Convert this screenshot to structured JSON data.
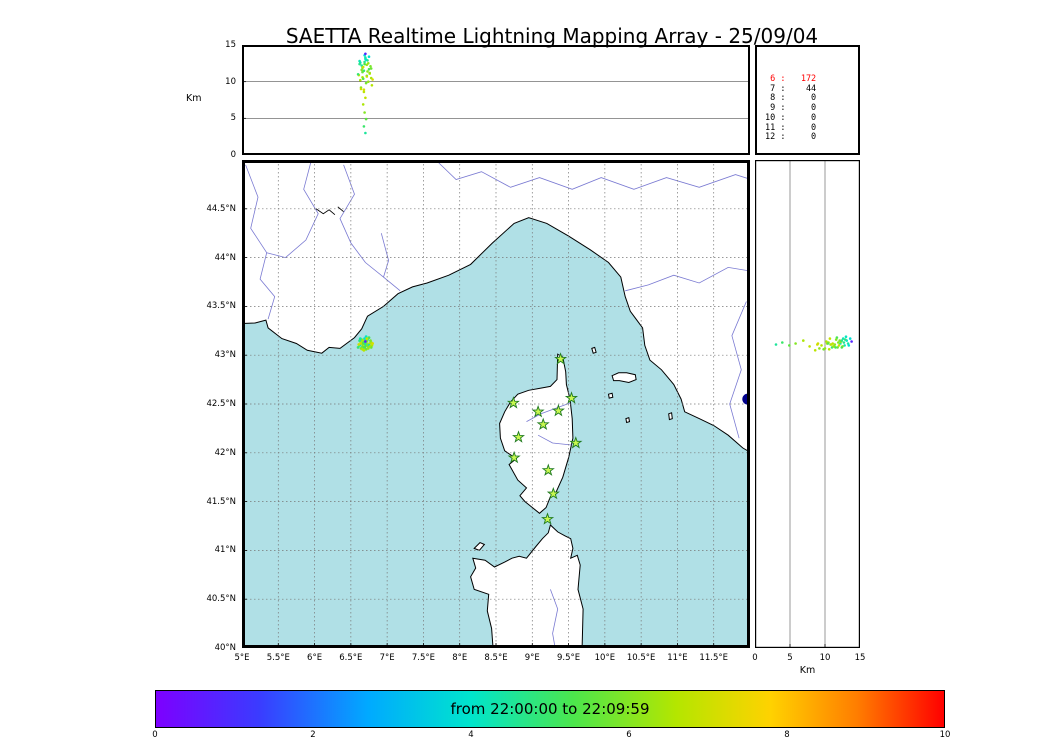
{
  "chart_data": {
    "type": "scatter",
    "title": "SAETTA Realtime Lightning Mapping Array - 25/09/04",
    "description": "Realtime lightning mapping array display: VHF sources as [longitude_deg, latitude_deg, altitude_km, time_min] colored by time within the window",
    "colorbar": {
      "label": "from 22:00:00 to 22:09:59",
      "range": [
        0,
        10
      ],
      "ticks": [
        "0",
        "2",
        "4",
        "6",
        "8",
        "10"
      ],
      "tick_values": [
        0,
        2,
        4,
        6,
        8,
        10
      ],
      "stops": [
        [
          0,
          "#7d00ff"
        ],
        [
          0.13,
          "#3b3bff"
        ],
        [
          0.27,
          "#00aaff"
        ],
        [
          0.4,
          "#00e5cc"
        ],
        [
          0.53,
          "#4ce64c"
        ],
        [
          0.66,
          "#b4e600"
        ],
        [
          0.78,
          "#ffd200"
        ],
        [
          0.89,
          "#ff7d00"
        ],
        [
          1,
          "#ff0000"
        ]
      ]
    },
    "panels": {
      "alt_vs_lon": {
        "axis_label": "Km",
        "ylim": [
          0,
          15
        ],
        "xlim": [
          5,
          12
        ],
        "tick_labels": [
          "0",
          "5",
          "10",
          "15"
        ],
        "tick_values": [
          0,
          5,
          10,
          15
        ],
        "gridlines": [
          5,
          10
        ]
      },
      "map": {
        "xlim": [
          5,
          12
        ],
        "ylim": [
          40,
          45
        ],
        "grid_step": 0.5,
        "xtick_labels": [
          "5°E",
          "5.5°E",
          "6°E",
          "6.5°E",
          "7°E",
          "7.5°E",
          "8°E",
          "8.5°E",
          "9°E",
          "9.5°E",
          "10°E",
          "10.5°E",
          "11°E",
          "11.5°E"
        ],
        "xtick_values": [
          5,
          5.5,
          6,
          6.5,
          7,
          7.5,
          8,
          8.5,
          9,
          9.5,
          10,
          10.5,
          11,
          11.5
        ],
        "ytick_labels": [
          "40°N",
          "40.5°N",
          "41°N",
          "41.5°N",
          "42°N",
          "42.5°N",
          "43°N",
          "43.5°N",
          "44°N",
          "44.5°N"
        ],
        "ytick_values": [
          40,
          40.5,
          41,
          41.5,
          42,
          42.5,
          43,
          43.5,
          44,
          44.5
        ]
      },
      "alt_vs_lat": {
        "axis_label": "Km",
        "xlim": [
          0,
          15
        ],
        "ylim": [
          40,
          45
        ],
        "tick_labels": [
          "0",
          "5",
          "10",
          "15"
        ],
        "tick_values": [
          0,
          5,
          10,
          15
        ],
        "gridlines": [
          5,
          10
        ]
      },
      "counts": {
        "rows": [
          [
            "6",
            "172"
          ],
          [
            "7",
            "44"
          ],
          [
            "8",
            "0"
          ],
          [
            "9",
            "0"
          ],
          [
            "10",
            "0"
          ],
          [
            "11",
            "0"
          ],
          [
            "12",
            "0"
          ]
        ],
        "highlight_index": 0,
        "highlight_color": "#ff0000"
      }
    },
    "sources": [
      [
        6.62,
        43.1,
        12.8,
        4.2
      ],
      [
        6.65,
        43.12,
        12.2,
        4.5
      ],
      [
        6.68,
        43.08,
        11.5,
        5.0
      ],
      [
        6.7,
        43.15,
        13.1,
        4.0
      ],
      [
        6.72,
        43.11,
        10.8,
        5.5
      ],
      [
        6.66,
        43.13,
        11.9,
        6.0
      ],
      [
        6.74,
        43.09,
        12.5,
        6.2
      ],
      [
        6.69,
        43.17,
        13.6,
        3.8
      ],
      [
        6.71,
        43.06,
        9.8,
        5.8
      ],
      [
        6.63,
        43.14,
        10.2,
        6.5
      ],
      [
        6.76,
        43.12,
        11.1,
        6.8
      ],
      [
        6.67,
        43.1,
        12.0,
        7.0
      ],
      [
        6.73,
        43.16,
        12.9,
        4.8
      ],
      [
        6.64,
        43.07,
        9.2,
        6.1
      ],
      [
        6.78,
        43.13,
        10.5,
        6.4
      ],
      [
        6.7,
        43.12,
        13.3,
        4.4
      ],
      [
        6.68,
        43.05,
        8.6,
        6.7
      ],
      [
        6.75,
        43.18,
        11.7,
        5.2
      ],
      [
        6.61,
        43.11,
        10.9,
        6.9
      ],
      [
        6.72,
        43.14,
        12.3,
        6.3
      ],
      [
        6.66,
        43.09,
        11.3,
        5.6
      ],
      [
        6.79,
        43.1,
        9.5,
        6.6
      ],
      [
        6.69,
        43.13,
        12.7,
        4.6
      ],
      [
        6.71,
        43.19,
        13.0,
        4.1
      ],
      [
        6.65,
        43.16,
        11.6,
        6.0
      ],
      [
        6.74,
        43.07,
        10.0,
        6.2
      ],
      [
        6.68,
        43.11,
        8.9,
        7.1
      ],
      [
        6.7,
        43.09,
        7.8,
        6.8
      ],
      [
        6.67,
        43.15,
        6.9,
        6.5
      ],
      [
        6.69,
        43.12,
        5.8,
        6.0
      ],
      [
        6.71,
        43.1,
        4.9,
        5.5
      ],
      [
        6.68,
        43.13,
        3.9,
        5.0
      ],
      [
        6.7,
        43.11,
        3.0,
        4.5
      ],
      [
        6.8,
        43.12,
        10.3,
        7.2
      ],
      [
        6.6,
        43.08,
        11.0,
        4.9
      ],
      [
        6.77,
        43.15,
        12.1,
        5.9
      ],
      [
        6.63,
        43.17,
        12.6,
        4.3
      ],
      [
        6.73,
        43.11,
        11.4,
        6.1
      ],
      [
        6.66,
        43.06,
        10.6,
        6.6
      ],
      [
        6.75,
        43.1,
        13.4,
        3.9
      ],
      [
        6.69,
        43.08,
        12.4,
        5.3
      ],
      [
        6.72,
        43.17,
        10.7,
        6.9
      ],
      [
        6.64,
        43.12,
        9.0,
        7.0
      ],
      [
        6.78,
        43.08,
        11.8,
        5.7
      ],
      [
        6.7,
        43.14,
        13.8,
        0.8
      ],
      [
        6.62,
        43.15,
        12.4,
        4.7
      ],
      [
        6.76,
        43.09,
        11.2,
        6.3
      ],
      [
        6.67,
        43.12,
        10.4,
        5.4
      ]
    ],
    "stations": [
      [
        9.39,
        42.96
      ],
      [
        8.74,
        42.51
      ],
      [
        9.08,
        42.42
      ],
      [
        9.36,
        42.43
      ],
      [
        9.54,
        42.56
      ],
      [
        9.15,
        42.29
      ],
      [
        8.81,
        42.16
      ],
      [
        8.75,
        41.95
      ],
      [
        9.6,
        42.1
      ],
      [
        9.22,
        41.82
      ],
      [
        9.29,
        41.58
      ],
      [
        9.21,
        41.32
      ]
    ],
    "edge_marker": {
      "lon": 11.97,
      "lat": 42.55,
      "radius_px": 5.5,
      "color": "#00008b"
    }
  },
  "basemap": {
    "sea_color": "#b0e0e6",
    "land_color": "#ffffff",
    "coast_color": "#000000",
    "river_color": "#7a7ad2",
    "grid_color": "#777777",
    "station_fill": "#c8f750",
    "station_stroke": "#1f7a1f",
    "land_polygons": {
      "mainland": [
        [
          4.8,
          45.3
        ],
        [
          4.8,
          43.32
        ],
        [
          5.18,
          43.33
        ],
        [
          5.33,
          43.36
        ],
        [
          5.36,
          43.28
        ],
        [
          5.55,
          43.17
        ],
        [
          5.75,
          43.12
        ],
        [
          5.9,
          43.05
        ],
        [
          6.1,
          43.02
        ],
        [
          6.2,
          43.08
        ],
        [
          6.35,
          43.07
        ],
        [
          6.55,
          43.18
        ],
        [
          6.65,
          43.27
        ],
        [
          6.73,
          43.4
        ],
        [
          6.95,
          43.5
        ],
        [
          7.15,
          43.63
        ],
        [
          7.35,
          43.7
        ],
        [
          7.55,
          43.74
        ],
        [
          7.85,
          43.82
        ],
        [
          8.15,
          43.93
        ],
        [
          8.45,
          44.15
        ],
        [
          8.75,
          44.35
        ],
        [
          8.95,
          44.41
        ],
        [
          9.2,
          44.35
        ],
        [
          9.5,
          44.22
        ],
        [
          9.8,
          44.08
        ],
        [
          10.05,
          43.95
        ],
        [
          10.22,
          43.8
        ],
        [
          10.28,
          43.6
        ],
        [
          10.35,
          43.45
        ],
        [
          10.52,
          43.28
        ],
        [
          10.55,
          43.1
        ],
        [
          10.62,
          42.95
        ],
        [
          10.78,
          42.85
        ],
        [
          10.95,
          42.7
        ],
        [
          11.05,
          42.55
        ],
        [
          11.1,
          42.42
        ],
        [
          11.3,
          42.35
        ],
        [
          11.5,
          42.28
        ],
        [
          11.7,
          42.18
        ],
        [
          11.9,
          42.05
        ],
        [
          12.2,
          41.92
        ],
        [
          12.2,
          45.3
        ]
      ],
      "corsica": [
        [
          9.35,
          43.01
        ],
        [
          9.42,
          42.98
        ],
        [
          9.46,
          42.83
        ],
        [
          9.47,
          42.7
        ],
        [
          9.52,
          42.55
        ],
        [
          9.55,
          42.35
        ],
        [
          9.56,
          42.15
        ],
        [
          9.5,
          41.95
        ],
        [
          9.42,
          41.75
        ],
        [
          9.33,
          41.6
        ],
        [
          9.25,
          41.55
        ],
        [
          9.19,
          41.44
        ],
        [
          9.1,
          41.38
        ],
        [
          9.0,
          41.44
        ],
        [
          8.9,
          41.5
        ],
        [
          8.83,
          41.56
        ],
        [
          8.92,
          41.64
        ],
        [
          8.8,
          41.72
        ],
        [
          8.68,
          41.88
        ],
        [
          8.78,
          41.94
        ],
        [
          8.62,
          42.02
        ],
        [
          8.56,
          42.15
        ],
        [
          8.55,
          42.3
        ],
        [
          8.62,
          42.42
        ],
        [
          8.7,
          42.52
        ],
        [
          8.8,
          42.6
        ],
        [
          8.95,
          42.64
        ],
        [
          9.1,
          42.66
        ],
        [
          9.25,
          42.68
        ],
        [
          9.34,
          42.75
        ]
      ],
      "sardinia": [
        [
          8.48,
          39.8
        ],
        [
          8.44,
          40.2
        ],
        [
          8.38,
          40.38
        ],
        [
          8.4,
          40.55
        ],
        [
          8.2,
          40.6
        ],
        [
          8.15,
          40.73
        ],
        [
          8.22,
          40.82
        ],
        [
          8.18,
          40.92
        ],
        [
          8.35,
          40.9
        ],
        [
          8.48,
          40.83
        ],
        [
          8.62,
          40.88
        ],
        [
          8.72,
          40.92
        ],
        [
          8.82,
          40.94
        ],
        [
          8.92,
          40.92
        ],
        [
          9.05,
          41.04
        ],
        [
          9.14,
          41.12
        ],
        [
          9.22,
          41.18
        ],
        [
          9.25,
          41.26
        ],
        [
          9.35,
          41.19
        ],
        [
          9.45,
          41.15
        ],
        [
          9.53,
          41.12
        ],
        [
          9.56,
          41.02
        ],
        [
          9.53,
          40.92
        ],
        [
          9.62,
          40.95
        ],
        [
          9.66,
          40.85
        ],
        [
          9.63,
          40.6
        ],
        [
          9.7,
          40.4
        ],
        [
          9.68,
          39.8
        ]
      ],
      "asinara": [
        [
          8.2,
          41.02
        ],
        [
          8.28,
          41.08
        ],
        [
          8.34,
          41.06
        ],
        [
          8.27,
          41.0
        ]
      ],
      "elba": [
        [
          10.1,
          42.79
        ],
        [
          10.19,
          42.82
        ],
        [
          10.3,
          42.82
        ],
        [
          10.42,
          42.8
        ],
        [
          10.43,
          42.75
        ],
        [
          10.33,
          42.72
        ],
        [
          10.2,
          42.74
        ],
        [
          10.12,
          42.74
        ]
      ],
      "capraia": [
        [
          9.82,
          43.07
        ],
        [
          9.86,
          43.08
        ],
        [
          9.88,
          43.03
        ],
        [
          9.84,
          43.02
        ]
      ],
      "pianosa": [
        [
          10.05,
          42.6
        ],
        [
          10.1,
          42.61
        ],
        [
          10.11,
          42.57
        ],
        [
          10.06,
          42.56
        ]
      ],
      "montecristo": [
        [
          10.29,
          42.35
        ],
        [
          10.33,
          42.36
        ],
        [
          10.34,
          42.32
        ],
        [
          10.3,
          42.31
        ]
      ],
      "giglio": [
        [
          10.88,
          42.4
        ],
        [
          10.92,
          42.41
        ],
        [
          10.93,
          42.35
        ],
        [
          10.89,
          42.34
        ]
      ]
    },
    "rivers": [
      [
        [
          5.05,
          44.95
        ],
        [
          5.22,
          44.62
        ],
        [
          5.12,
          44.3
        ],
        [
          5.34,
          44.05
        ],
        [
          5.25,
          43.78
        ],
        [
          5.45,
          43.6
        ],
        [
          5.36,
          43.37
        ]
      ],
      [
        [
          5.95,
          44.98
        ],
        [
          5.85,
          44.7
        ],
        [
          6.05,
          44.45
        ],
        [
          5.88,
          44.18
        ],
        [
          5.6,
          44.0
        ],
        [
          5.34,
          44.05
        ]
      ],
      [
        [
          6.4,
          44.95
        ],
        [
          6.55,
          44.65
        ],
        [
          6.35,
          44.4
        ],
        [
          6.5,
          44.15
        ],
        [
          6.7,
          43.95
        ],
        [
          6.95,
          43.8
        ]
      ],
      [
        [
          6.92,
          44.25
        ],
        [
          7.02,
          43.97
        ],
        [
          6.95,
          43.8
        ],
        [
          7.18,
          43.66
        ]
      ],
      [
        [
          7.7,
          44.98
        ],
        [
          7.95,
          44.8
        ],
        [
          8.3,
          44.88
        ],
        [
          8.7,
          44.72
        ],
        [
          9.1,
          44.82
        ],
        [
          9.55,
          44.7
        ],
        [
          9.95,
          44.82
        ],
        [
          10.4,
          44.7
        ],
        [
          10.85,
          44.82
        ],
        [
          11.3,
          44.72
        ],
        [
          11.8,
          44.85
        ],
        [
          12.1,
          44.78
        ]
      ],
      [
        [
          10.28,
          43.66
        ],
        [
          10.6,
          43.72
        ],
        [
          10.95,
          43.82
        ],
        [
          11.3,
          43.74
        ],
        [
          11.7,
          43.9
        ],
        [
          12.1,
          43.85
        ]
      ],
      [
        [
          11.95,
          43.55
        ],
        [
          11.75,
          43.2
        ],
        [
          11.88,
          42.85
        ],
        [
          11.72,
          42.5
        ],
        [
          11.85,
          42.15
        ]
      ],
      [
        [
          8.92,
          42.32
        ],
        [
          9.12,
          42.4
        ],
        [
          9.3,
          42.45
        ],
        [
          9.52,
          42.51
        ]
      ],
      [
        [
          9.08,
          42.18
        ],
        [
          9.28,
          42.1
        ],
        [
          9.54,
          42.08
        ]
      ],
      [
        [
          9.35,
          39.85
        ],
        [
          9.28,
          40.15
        ],
        [
          9.35,
          40.4
        ],
        [
          9.25,
          40.6
        ]
      ]
    ],
    "terrain_marks": [
      [
        [
          6.02,
          44.5
        ],
        [
          6.12,
          44.45
        ],
        [
          6.2,
          44.49
        ],
        [
          6.28,
          44.44
        ]
      ],
      [
        [
          6.32,
          44.52
        ],
        [
          6.4,
          44.47
        ]
      ]
    ]
  }
}
